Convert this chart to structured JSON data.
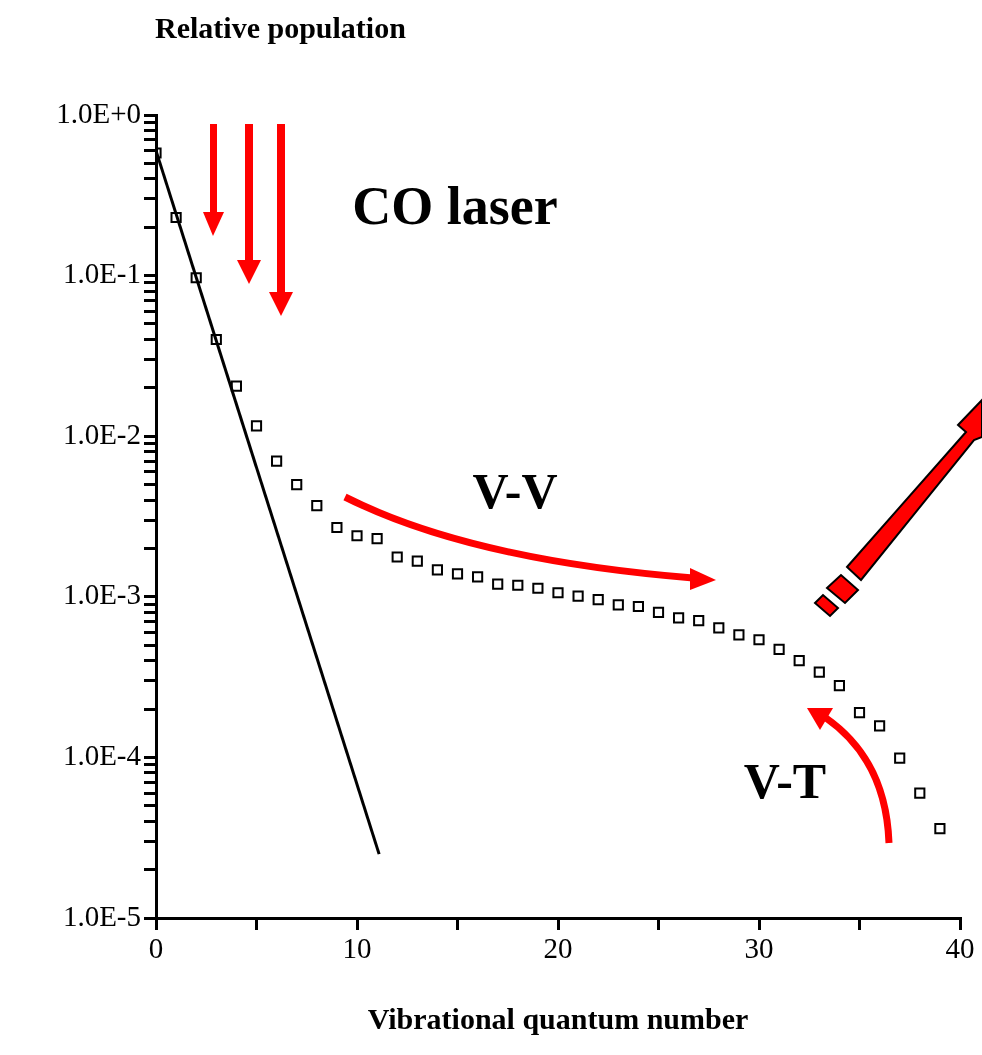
{
  "chart_data": {
    "type": "scatter",
    "ylabel": "Relative population",
    "xlabel": "Vibrational quantum number",
    "annotations": [
      "CO laser",
      "V-V",
      "V-T"
    ],
    "log": "y",
    "grid": false,
    "legend": false,
    "marker": "square",
    "xlim": [
      0,
      40
    ],
    "xticks": [
      0,
      {
        "value": 5,
        "label": null
      },
      10,
      {
        "value": 15,
        "label": null
      },
      20,
      {
        "value": 25,
        "label": null
      },
      30,
      {
        "value": 35,
        "label": null
      },
      40
    ],
    "ylim": [
      1e-05,
      1
    ],
    "yticks": [
      {
        "value": 1e-05,
        "label": "1.0E-5"
      },
      {
        "value": 2e-05,
        "label": null
      },
      {
        "value": 3e-05,
        "label": null
      },
      {
        "value": 4e-05,
        "label": null
      },
      {
        "value": 5e-05,
        "label": null
      },
      {
        "value": 6e-05,
        "label": null
      },
      {
        "value": 7e-05,
        "label": null
      },
      {
        "value": 8e-05,
        "label": null
      },
      {
        "value": 9e-05,
        "label": null
      },
      {
        "value": 0.0001,
        "label": "1.0E-4"
      },
      {
        "value": 0.0002,
        "label": null
      },
      {
        "value": 0.0003,
        "label": null
      },
      {
        "value": 0.0004,
        "label": null
      },
      {
        "value": 0.0005,
        "label": null
      },
      {
        "value": 0.0006,
        "label": null
      },
      {
        "value": 0.0007,
        "label": null
      },
      {
        "value": 0.0008,
        "label": null
      },
      {
        "value": 0.0009,
        "label": null
      },
      {
        "value": 0.001,
        "label": "1.0E-3"
      },
      {
        "value": 0.002,
        "label": null
      },
      {
        "value": 0.003,
        "label": null
      },
      {
        "value": 0.004,
        "label": null
      },
      {
        "value": 0.005,
        "label": null
      },
      {
        "value": 0.006,
        "label": null
      },
      {
        "value": 0.007,
        "label": null
      },
      {
        "value": 0.008,
        "label": null
      },
      {
        "value": 0.009,
        "label": null
      },
      {
        "value": 0.01,
        "label": "1.0E-2"
      },
      {
        "value": 0.02,
        "label": null
      },
      {
        "value": 0.03,
        "label": null
      },
      {
        "value": 0.04,
        "label": null
      },
      {
        "value": 0.05,
        "label": null
      },
      {
        "value": 0.06,
        "label": null
      },
      {
        "value": 0.07,
        "label": null
      },
      {
        "value": 0.08,
        "label": null
      },
      {
        "value": 0.09,
        "label": null
      },
      {
        "value": 0.1,
        "label": "1.0E-1"
      },
      {
        "value": 0.2,
        "label": null
      },
      {
        "value": 0.3,
        "label": null
      },
      {
        "value": 0.4,
        "label": null
      },
      {
        "value": 0.5,
        "label": null
      },
      {
        "value": 0.6,
        "label": null
      },
      {
        "value": 0.7,
        "label": null
      },
      {
        "value": 0.8,
        "label": null
      },
      {
        "value": 0.9,
        "label": null
      },
      {
        "value": 1,
        "label": "1.0E+0"
      }
    ],
    "series": [
      {
        "color": "#000000",
        "x": [
          0,
          1,
          2,
          3,
          4,
          5,
          6,
          7,
          8,
          9,
          10,
          11,
          12,
          13,
          14,
          15,
          16,
          17,
          18,
          19,
          20,
          21,
          22,
          23,
          24,
          25,
          26,
          27,
          28,
          29,
          30,
          31,
          32,
          33,
          34,
          35,
          36,
          37,
          38,
          39
        ],
        "values": [
          0.58,
          0.23,
          0.097,
          0.04,
          0.0205,
          0.0116,
          0.007,
          0.005,
          0.0037,
          0.0027,
          0.0024,
          0.0023,
          0.00177,
          0.00167,
          0.00147,
          0.00139,
          0.00133,
          0.0012,
          0.00118,
          0.00113,
          0.00106,
          0.00101,
          0.00096,
          0.00089,
          0.00087,
          0.0008,
          0.00074,
          0.00071,
          0.00064,
          0.00058,
          0.00054,
          0.00047,
          0.0004,
          0.00034,
          0.00028,
          0.00019,
          0.000157,
          9.9e-05,
          6e-05,
          3.6e-05
        ]
      },
      {
        "type": "line",
        "marker": "none",
        "color": "#000000",
        "x": [
          0,
          11.1
        ],
        "values": [
          0.6,
          2.5e-05
        ]
      }
    ]
  }
}
